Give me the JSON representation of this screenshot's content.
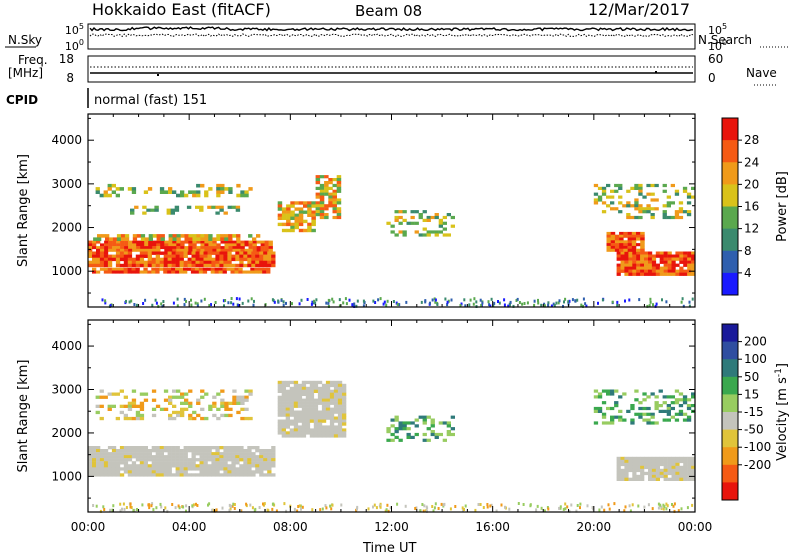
{
  "title": {
    "left": "Hokkaido East (fitACF)",
    "center": "Beam 08",
    "right": "12/Mar/2017"
  },
  "colors": {
    "power_scale": [
      "#1a1aff",
      "#2f5fae",
      "#3a8a6e",
      "#5aa84e",
      "#d9c21a",
      "#f09a1a",
      "#f55a14",
      "#e8140c"
    ],
    "velocity_scale": [
      "#e8140c",
      "#f55a14",
      "#f09a1a",
      "#e0c43a",
      "#c4c4bc",
      "#98cc60",
      "#3aa84e",
      "#2f7a7a",
      "#2f4ea0",
      "#1a1a9a"
    ],
    "ground_scatter": "#c4c4bc"
  },
  "header_panels": {
    "nsky": {
      "left_label_1": "N.Sky",
      "left_ticks": [
        "10^5",
        "10^0"
      ],
      "right_label": "N.Search",
      "right_ticks": [
        "10^5",
        "10^0"
      ]
    },
    "freq": {
      "left_label_1": "Freq.",
      "left_label_2": "[MHz]",
      "left_ticks": [
        "18",
        "8"
      ],
      "right_label": "Nave",
      "right_ticks": [
        "60",
        "0"
      ]
    },
    "cpid": {
      "label": "CPID",
      "value": "normal (fast) 151"
    }
  },
  "chart_data": [
    {
      "type": "heatmap",
      "title": "",
      "ylabel": "Slant Range [km]",
      "xlabel": "",
      "x_ticks": [
        "00:00",
        "04:00",
        "08:00",
        "12:00",
        "16:00",
        "20:00",
        "00:00"
      ],
      "x_range_hours": [
        0,
        24
      ],
      "y_ticks": [
        1000,
        2000,
        3000,
        4000
      ],
      "ylim": [
        180,
        4600
      ],
      "colorbar": {
        "label": "Power [dB]",
        "ticks": [
          4,
          8,
          12,
          16,
          20,
          24,
          28
        ],
        "range": [
          0,
          32
        ]
      },
      "regions": [
        {
          "t0": 0.0,
          "t1": 7.3,
          "r0": 1450,
          "r1": 1700,
          "level": "strong"
        },
        {
          "t0": 0.0,
          "t1": 7.4,
          "r0": 1100,
          "r1": 1450,
          "level": "strong"
        },
        {
          "t0": 0.0,
          "t1": 7.2,
          "r0": 950,
          "r1": 1080,
          "level": "strong"
        },
        {
          "t0": 0.2,
          "t1": 6.8,
          "r0": 1700,
          "r1": 1850,
          "level": "medium"
        },
        {
          "t0": 0.3,
          "t1": 6.5,
          "r0": 2700,
          "r1": 3000,
          "level": "weak"
        },
        {
          "t0": 1.5,
          "t1": 6.0,
          "r0": 2300,
          "r1": 2500,
          "level": "weak"
        },
        {
          "t0": 7.5,
          "t1": 9.0,
          "r0": 1900,
          "r1": 2600,
          "level": "medium"
        },
        {
          "t0": 9.0,
          "t1": 10.0,
          "r0": 2200,
          "r1": 3200,
          "level": "medium"
        },
        {
          "t0": 11.8,
          "t1": 14.5,
          "r0": 1800,
          "r1": 2400,
          "level": "weak"
        },
        {
          "t0": 20.9,
          "t1": 24.0,
          "r0": 900,
          "r1": 1450,
          "level": "strong"
        },
        {
          "t0": 20.5,
          "t1": 22.0,
          "r0": 1450,
          "r1": 1900,
          "level": "strong"
        },
        {
          "t0": 20.0,
          "t1": 24.0,
          "r0": 2200,
          "r1": 3000,
          "level": "weak"
        }
      ]
    },
    {
      "type": "heatmap",
      "title": "",
      "ylabel": "Slant Range [km]",
      "xlabel": "Time UT",
      "x_ticks": [
        "00:00",
        "04:00",
        "08:00",
        "12:00",
        "16:00",
        "20:00",
        "00:00"
      ],
      "x_range_hours": [
        0,
        24
      ],
      "y_ticks": [
        1000,
        2000,
        3000,
        4000
      ],
      "ylim": [
        180,
        4600
      ],
      "colorbar": {
        "label": "Velocity [m s^-1]",
        "ticks": [
          200,
          100,
          50,
          15,
          -15,
          -50,
          -100,
          -200
        ],
        "range": [
          -250,
          250
        ]
      },
      "regions": [
        {
          "t0": 0.0,
          "t1": 7.4,
          "r0": 1000,
          "r1": 1700,
          "level": "ground"
        },
        {
          "t0": 7.5,
          "t1": 10.2,
          "r0": 1900,
          "r1": 3200,
          "level": "ground"
        },
        {
          "t0": 20.9,
          "t1": 24.0,
          "r0": 900,
          "r1": 1450,
          "level": "ground"
        },
        {
          "t0": 11.8,
          "t1": 14.5,
          "r0": 1800,
          "r1": 2400,
          "level": "positive"
        },
        {
          "t0": 20.0,
          "t1": 24.0,
          "r0": 2200,
          "r1": 3000,
          "level": "positive"
        },
        {
          "t0": 0.3,
          "t1": 6.5,
          "r0": 2300,
          "r1": 3000,
          "level": "mixed"
        }
      ]
    }
  ]
}
